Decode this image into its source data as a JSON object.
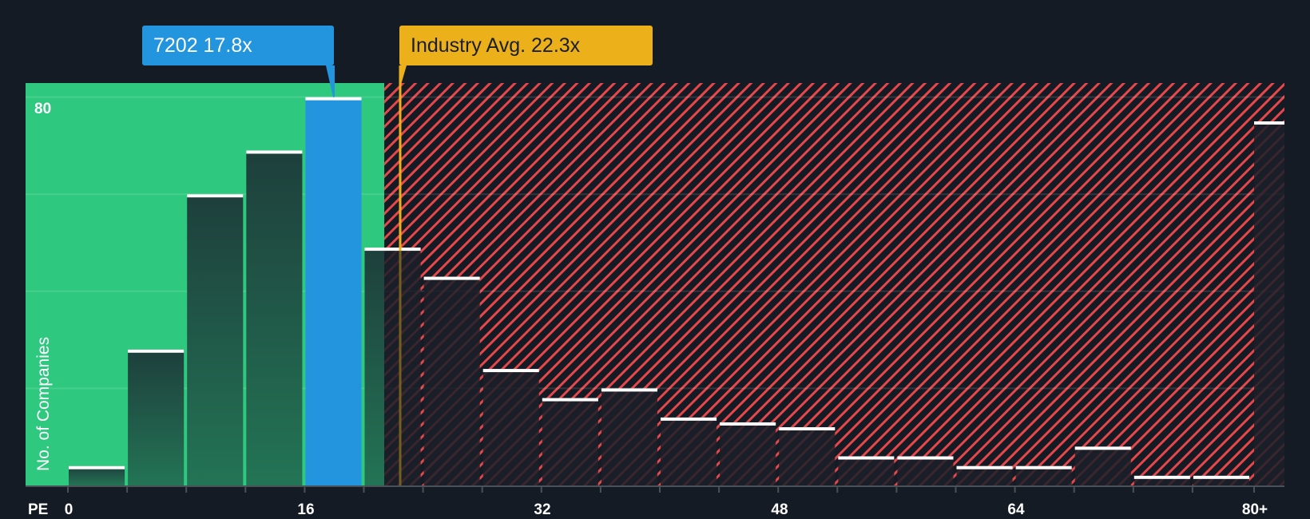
{
  "chart_data": {
    "type": "bar",
    "title": "",
    "xlabel": "PE",
    "ylabel": "No. of Companies",
    "x_tick_labels": [
      "0",
      "16",
      "32",
      "48",
      "64",
      "80+"
    ],
    "y_tick_labels": [
      "80"
    ],
    "ylim": [
      0,
      83
    ],
    "gridlines_y": [
      20,
      40,
      60,
      80
    ],
    "bin_width": 4,
    "categories": [
      "0-4",
      "4-8",
      "8-12",
      "12-16",
      "16-20",
      "20-24",
      "24-28",
      "28-32",
      "32-36",
      "36-40",
      "40-44",
      "44-48",
      "48-52",
      "52-56",
      "56-60",
      "60-64",
      "64-68",
      "68-72",
      "72-76",
      "76-80",
      "80+"
    ],
    "values": [
      4,
      28,
      60,
      69,
      80,
      49,
      43,
      24,
      18,
      20,
      14,
      13,
      12,
      6,
      6,
      4,
      4,
      8,
      2,
      2,
      75
    ],
    "highlight_index": 4,
    "company": {
      "ticker": "7202",
      "pe": 17.8,
      "label": "7202 17.8x"
    },
    "industry_avg": {
      "pe": 22.3,
      "label": "Industry Avg. 22.3x"
    },
    "regions": [
      {
        "name": "below-industry-avg",
        "from": 0,
        "to": 21.5,
        "color": "#2ec97f"
      },
      {
        "name": "above-industry-avg",
        "from": 21.5,
        "to": "80+",
        "color": "#e8474a",
        "pattern": "hatched"
      }
    ],
    "colors": {
      "background": "#151b24",
      "green_region": "#2ec97f",
      "hatch_red": "#e8474a",
      "company_bar": "#2394de",
      "industry_line": "#ecb01a",
      "bar_cap": "#ffffff"
    }
  },
  "labels": {
    "company_callout": "7202 17.8x",
    "industry_callout": "Industry Avg. 22.3x",
    "y_axis_title": "No. of Companies",
    "y_tick_80": "80",
    "x_axis_prefix": "PE",
    "x_ticks": [
      "0",
      "16",
      "32",
      "48",
      "64",
      "80+"
    ]
  }
}
